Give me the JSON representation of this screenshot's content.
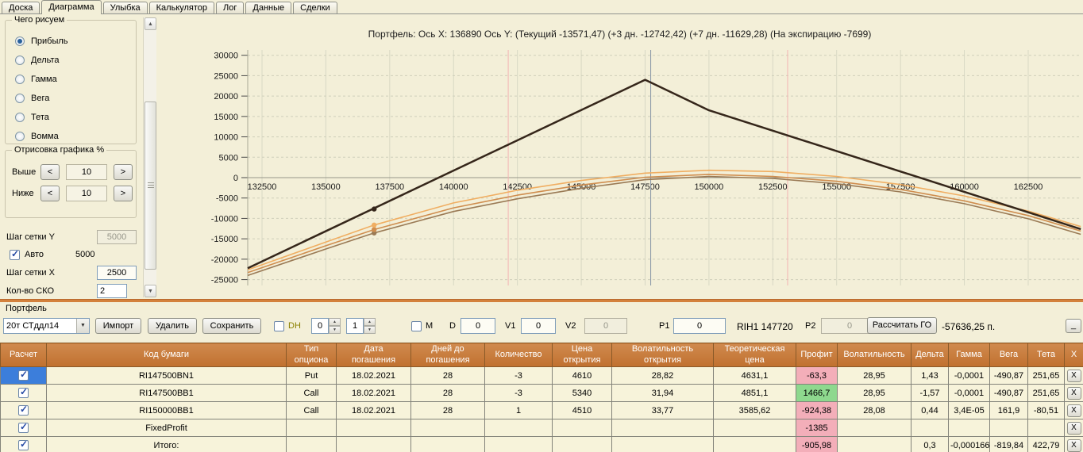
{
  "tabs": {
    "items": [
      "Доска",
      "Диаграмма",
      "Улыбка",
      "Калькулятор",
      "Лог",
      "Данные",
      "Сделки"
    ],
    "active": "Диаграмма"
  },
  "left_panel": {
    "draw_group_title": "Чего рисуем",
    "draw_options": [
      {
        "label": "Прибыль",
        "selected": true
      },
      {
        "label": "Дельта",
        "selected": false
      },
      {
        "label": "Гамма",
        "selected": false
      },
      {
        "label": "Вега",
        "selected": false
      },
      {
        "label": "Тета",
        "selected": false
      },
      {
        "label": "Вомма",
        "selected": false
      }
    ],
    "render_group_title": "Отрисовка графика %",
    "above_label": "Выше",
    "above_value": "10",
    "below_label": "Ниже",
    "below_value": "10",
    "dec_label": "<",
    "inc_label": ">",
    "grid_y_label": "Шаг сетки Y",
    "grid_y_value": "5000",
    "auto_label": "Авто",
    "auto_checked": true,
    "auto_value": "5000",
    "grid_x_label": "Шаг сетки X",
    "grid_x_value": "2500",
    "sko_label": "Кол-во СКО",
    "sko_value": "2"
  },
  "chart_data": {
    "type": "line",
    "title": "Портфель:  Ось X: 136890  Ось Y:   (Текущий -13571,47)   (+3 дн. -12742,42)   (+7 дн. -11629,28)   (На экспирацию -7699)",
    "x_ticks": [
      132500,
      135000,
      137500,
      140000,
      142500,
      145000,
      147500,
      150000,
      152500,
      155000,
      157500,
      160000,
      162500
    ],
    "y_ticks": [
      30000,
      25000,
      20000,
      15000,
      10000,
      5000,
      0,
      -5000,
      -10000,
      -15000,
      -20000,
      -25000
    ],
    "x_range": [
      131940,
      164560
    ],
    "ylim": [
      -25000,
      30000
    ],
    "grid": true,
    "cursor_x": 136890,
    "series": [
      {
        "name": "Текущий",
        "color": "#9a7a55",
        "width": 1.6,
        "points": [
          [
            131940,
            -24000
          ],
          [
            135000,
            -17500
          ],
          [
            136890,
            -13571
          ],
          [
            140000,
            -8300
          ],
          [
            142500,
            -5200
          ],
          [
            145000,
            -2600
          ],
          [
            147500,
            -500
          ],
          [
            150000,
            300
          ],
          [
            152500,
            -200
          ],
          [
            155000,
            -1500
          ],
          [
            157500,
            -3500
          ],
          [
            160000,
            -6400
          ],
          [
            162500,
            -10100
          ],
          [
            164560,
            -13900
          ]
        ]
      },
      {
        "name": "+3 дн.",
        "color": "#cf8d4e",
        "width": 1.6,
        "points": [
          [
            131940,
            -23300
          ],
          [
            135000,
            -16700
          ],
          [
            136890,
            -12742
          ],
          [
            140000,
            -7400
          ],
          [
            142500,
            -4300
          ],
          [
            145000,
            -1800
          ],
          [
            147500,
            100
          ],
          [
            150000,
            800
          ],
          [
            152500,
            300
          ],
          [
            155000,
            -900
          ],
          [
            157500,
            -2900
          ],
          [
            160000,
            -5700
          ],
          [
            162500,
            -9300
          ],
          [
            164560,
            -13100
          ]
        ]
      },
      {
        "name": "+7 дн.",
        "color": "#f0ae62",
        "width": 1.6,
        "points": [
          [
            131940,
            -22600
          ],
          [
            135000,
            -15800
          ],
          [
            136890,
            -11629
          ],
          [
            140000,
            -6200
          ],
          [
            142500,
            -3100
          ],
          [
            145000,
            -700
          ],
          [
            147500,
            1100
          ],
          [
            150000,
            1800
          ],
          [
            152500,
            1500
          ],
          [
            155000,
            300
          ],
          [
            157500,
            -1700
          ],
          [
            160000,
            -4500
          ],
          [
            162500,
            -8200
          ],
          [
            164560,
            -12000
          ]
        ]
      },
      {
        "name": "На экспирацию",
        "color": "#35261a",
        "width": 2.5,
        "points": [
          [
            131940,
            -22200
          ],
          [
            147500,
            24000
          ],
          [
            150000,
            16500
          ],
          [
            164560,
            -12620
          ]
        ]
      }
    ],
    "markers": [
      {
        "x": 136890,
        "y": -13571,
        "color": "#9a7a55"
      },
      {
        "x": 136890,
        "y": -12742,
        "color": "#cf8d4e"
      },
      {
        "x": 136890,
        "y": -11629,
        "color": "#f0ae62"
      },
      {
        "x": 136890,
        "y": -7699,
        "color": "#35261a"
      }
    ],
    "vlines": [
      {
        "x": 147720,
        "color": "#8593a5",
        "name": "current-price-line"
      },
      {
        "x": 142140,
        "color": "#f3b4b4",
        "name": "sko-low-line"
      },
      {
        "x": 153080,
        "color": "#f3b4b4",
        "name": "sko-high-line"
      }
    ]
  },
  "portfolio": {
    "group_label": "Портфель",
    "combo_value": "20т СТддл14",
    "import_label": "Импорт",
    "delete_label": "Удалить",
    "save_label": "Сохранить",
    "dh_label": "DH",
    "dh_spin1": "0",
    "dh_spin2": "1",
    "m_label": "M",
    "d_label": "D",
    "d_value": "0",
    "v1_label": "V1",
    "v1_value": "0",
    "v2_label": "V2",
    "v2_value": "0",
    "p1_label": "P1",
    "p1_value": "0",
    "instrument_label": "RIH1 147720",
    "p2_label": "P2",
    "p2_value": "0",
    "calc_go_label": "Рассчитать ГО",
    "go_value": "-57636,25 п.",
    "minimize_label": "_",
    "table": {
      "columns": [
        "Расчет",
        "Код бумаги",
        "Тип\nопциона",
        "Дата\nпогашения",
        "Дней до\nпогашения",
        "Количество",
        "Цена\nоткрытия",
        "Волатильность\nоткрытия",
        "Теоретическая\nцена",
        "Профит",
        "Волатильность",
        "Дельта",
        "Гамма",
        "Вега",
        "Тета",
        "X"
      ],
      "delete_label": "X",
      "rows": [
        {
          "checked": true,
          "cell_selected": true,
          "cells": [
            "RI147500BN1",
            "Put",
            "18.02.2021",
            "28",
            "-3",
            "4610",
            "28,82",
            "4631,1",
            "-63,3",
            "28,95",
            "1,43",
            "-0,0001",
            "-490,87",
            "251,65"
          ],
          "profit_color": "pink"
        },
        {
          "checked": true,
          "cell_selected": false,
          "cells": [
            "RI147500BB1",
            "Call",
            "18.02.2021",
            "28",
            "-3",
            "5340",
            "31,94",
            "4851,1",
            "1466,7",
            "28,95",
            "-1,57",
            "-0,0001",
            "-490,87",
            "251,65"
          ],
          "profit_color": "green"
        },
        {
          "checked": true,
          "cell_selected": false,
          "cells": [
            "RI150000BB1",
            "Call",
            "18.02.2021",
            "28",
            "1",
            "4510",
            "33,77",
            "3585,62",
            "-924,38",
            "28,08",
            "0,44",
            "3,4E-05",
            "161,9",
            "-80,51"
          ],
          "profit_color": "pink"
        },
        {
          "checked": true,
          "cell_selected": false,
          "cells": [
            "FixedProfit",
            "",
            "",
            "",
            "",
            "",
            "",
            "",
            "-1385",
            "",
            "",
            "",
            "",
            ""
          ],
          "profit_color": "pink"
        },
        {
          "checked": true,
          "cell_selected": false,
          "cells": [
            "Итого:",
            "",
            "",
            "",
            "",
            "",
            "",
            "",
            "-905,98",
            "",
            "0,3",
            "-0,000166",
            "-819,84",
            "422,79"
          ],
          "profit_color": "pink"
        }
      ]
    }
  }
}
